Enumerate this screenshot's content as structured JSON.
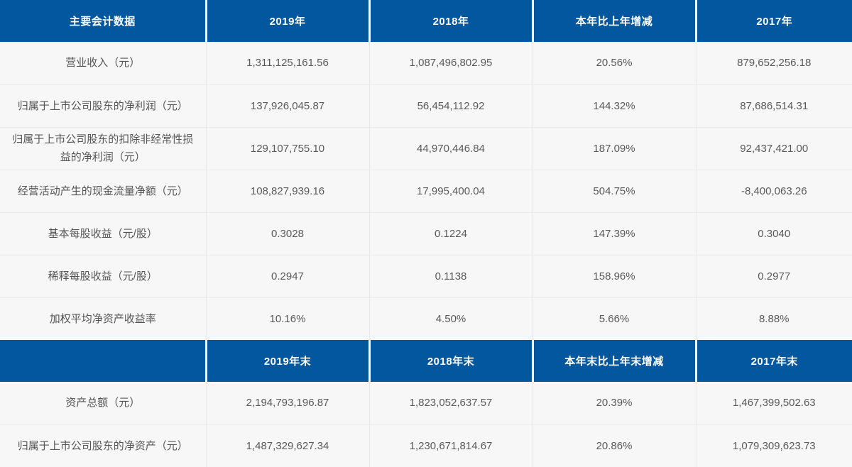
{
  "title": "主要会计数据",
  "colors": {
    "header_bg": "#02579f",
    "header_text": "#ffffff",
    "body_bg": "#f7f7f7",
    "body_text": "#5a5a5a"
  },
  "sections": [
    {
      "header": [
        "主要会计数据",
        "2019年",
        "2018年",
        "本年比上年增减",
        "2017年"
      ],
      "rows": [
        [
          "营业收入（元）",
          "1,311,125,161.56",
          "1,087,496,802.95",
          "20.56%",
          "879,652,256.18"
        ],
        [
          "归属于上市公司股东的净利润（元）",
          "137,926,045.87",
          "56,454,112.92",
          "144.32%",
          "87,686,514.31"
        ],
        [
          "归属于上市公司股东的扣除非经常性损益的净利润（元）",
          "129,107,755.10",
          "44,970,446.84",
          "187.09%",
          "92,437,421.00"
        ],
        [
          "经营活动产生的现金流量净额（元）",
          "108,827,939.16",
          "17,995,400.04",
          "504.75%",
          "-8,400,063.26"
        ],
        [
          "基本每股收益（元/股）",
          "0.3028",
          "0.1224",
          "147.39%",
          "0.3040"
        ],
        [
          "稀释每股收益（元/股）",
          "0.2947",
          "0.1138",
          "158.96%",
          "0.2977"
        ],
        [
          "加权平均净资产收益率",
          "10.16%",
          "4.50%",
          "5.66%",
          "8.88%"
        ]
      ]
    },
    {
      "header": [
        "",
        "2019年末",
        "2018年末",
        "本年末比上年末增减",
        "2017年末"
      ],
      "rows": [
        [
          "资产总额（元）",
          "2,194,793,196.87",
          "1,823,052,637.57",
          "20.39%",
          "1,467,399,502.63"
        ],
        [
          "归属于上市公司股东的净资产（元）",
          "1,487,329,627.34",
          "1,230,671,814.67",
          "20.86%",
          "1,079,309,623.73"
        ]
      ]
    }
  ]
}
